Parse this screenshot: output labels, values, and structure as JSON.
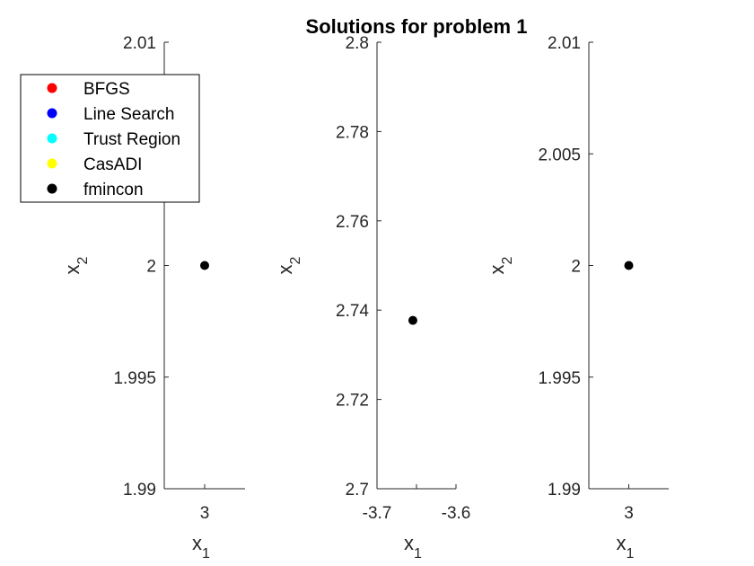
{
  "chart_data": {
    "type": "scatter",
    "title": "Solutions for problem 1",
    "legend": {
      "placement": "top-left",
      "entries": [
        {
          "label": "BFGS",
          "color": "#ff0000"
        },
        {
          "label": "Line Search",
          "color": "#0000ff"
        },
        {
          "label": "Trust Region",
          "color": "#00ffff"
        },
        {
          "label": "CasADI",
          "color": "#ffff00"
        },
        {
          "label": "fmincon",
          "color": "#000000"
        }
      ]
    },
    "subplots": [
      {
        "xlabel": "x",
        "xlabel_sub": "1",
        "ylabel": "x",
        "ylabel_sub": "2",
        "xlim": [
          2.5,
          3.5
        ],
        "ylim": [
          1.99,
          2.01
        ],
        "xticks": [
          3
        ],
        "xtick_labels": [
          "3"
        ],
        "yticks": [
          1.99,
          1.995,
          2,
          2.005,
          2.01
        ],
        "ytick_labels": [
          "1.99",
          "1.995",
          "2",
          "",
          "2.01"
        ],
        "points": [
          {
            "series": "fmincon",
            "x": 3,
            "y": 2,
            "color": "#000000"
          }
        ]
      },
      {
        "xlabel": "x",
        "xlabel_sub": "1",
        "ylabel": "x",
        "ylabel_sub": "2",
        "xlim": [
          -3.7,
          -3.6
        ],
        "ylim": [
          2.7,
          2.8
        ],
        "xticks": [
          -3.7,
          -3.65,
          -3.6
        ],
        "xtick_labels": [
          "-3.7",
          "",
          "-3.6"
        ],
        "yticks": [
          2.7,
          2.72,
          2.74,
          2.76,
          2.78,
          2.8
        ],
        "ytick_labels": [
          "2.7",
          "2.72",
          "2.74",
          "2.76",
          "2.78",
          "2.8"
        ],
        "points": [
          {
            "series": "fmincon",
            "x": -3.6546,
            "y": 2.7377,
            "color": "#000000"
          }
        ]
      },
      {
        "xlabel": "x",
        "xlabel_sub": "1",
        "ylabel": "x",
        "ylabel_sub": "2",
        "xlim": [
          2.5,
          3.5
        ],
        "ylim": [
          1.99,
          2.01
        ],
        "xticks": [
          3
        ],
        "xtick_labels": [
          "3"
        ],
        "yticks": [
          1.99,
          1.995,
          2,
          2.005,
          2.01
        ],
        "ytick_labels": [
          "1.99",
          "1.995",
          "2",
          "2.005",
          "2.01"
        ],
        "points": [
          {
            "series": "fmincon",
            "x": 3,
            "y": 2,
            "color": "#000000"
          }
        ]
      }
    ]
  }
}
